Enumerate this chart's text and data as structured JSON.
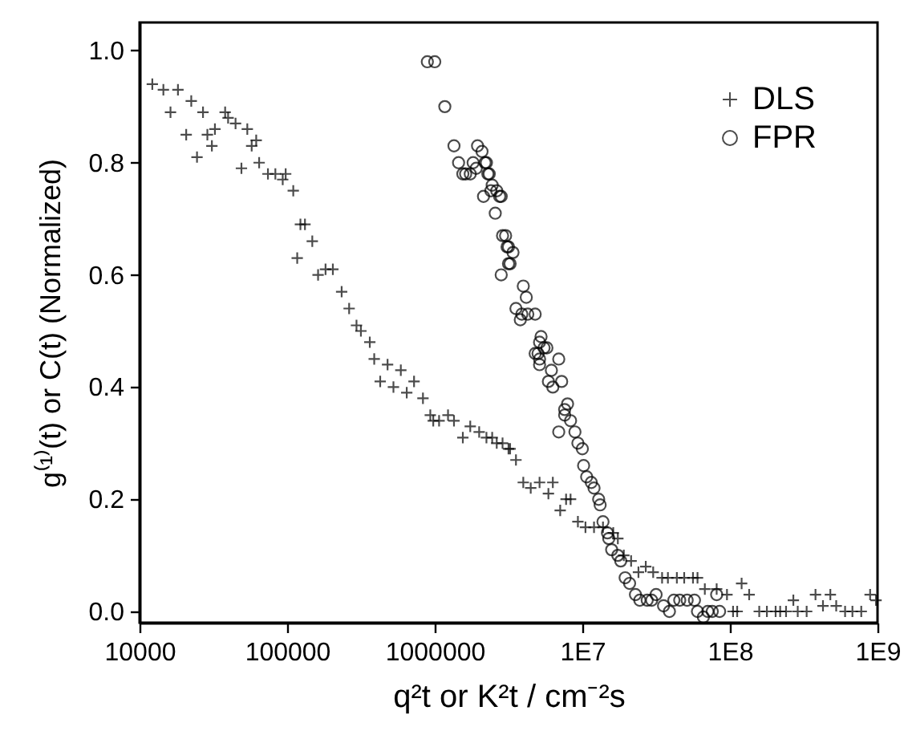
{
  "chart_data": {
    "type": "scatter",
    "xlabel": "q²t or K²t  / cm⁻²s",
    "ylabel": "g⁽¹⁾(t)  or C(t)  (Normalized)",
    "log": "x",
    "xlim": [
      10000,
      1000000000
    ],
    "xticks": [
      10000,
      100000,
      1000000,
      {
        "value": 10000000,
        "label": "1E7"
      },
      {
        "value": 100000000,
        "label": "1E8"
      },
      {
        "value": 1000000000,
        "label": "1E9"
      }
    ],
    "ylim": [
      -0.02,
      1.05
    ],
    "yticks": [
      {
        "value": 0,
        "label": "0.0"
      },
      {
        "value": 0.2,
        "label": "0.2"
      },
      {
        "value": 0.4,
        "label": "0.4"
      },
      {
        "value": 0.6,
        "label": "0.6"
      },
      {
        "value": 0.8,
        "label": "0.8"
      },
      {
        "value": 1,
        "label": "1.0"
      }
    ],
    "legend": "top right",
    "grid": false,
    "series": [
      {
        "name": "DLS",
        "color": "#000000",
        "marker": "cross",
        "x": [
          12200,
          14500,
          18200,
          16200,
          20700,
          22400,
          24500,
          26900,
          28800,
          30900,
          32400,
          38000,
          39800,
          44700,
          49000,
          53700,
          57500,
          61700,
          64600,
          74100,
          83200,
          93300,
          97700,
          110000,
          117000,
          123000,
          132000,
          148000,
          162000,
          182000,
          204000,
          234000,
          263000,
          295000,
          316000,
          363000,
          389000,
          427000,
          479000,
          525000,
          589000,
          646000,
          724000,
          832000,
          933000,
          977000,
          1070000,
          1230000,
          1350000,
          1550000,
          1740000,
          2000000,
          2240000,
          2450000,
          2630000,
          2880000,
          3160000,
          3240000,
          3550000,
          3980000,
          4470000,
          5130000,
          5890000,
          6310000,
          7080000,
          7760000,
          8320000,
          9330000,
          10500000,
          12000000,
          13800000,
          16200000,
          17400000,
          19100000,
          21400000,
          24000000,
          26900000,
          30200000,
          34700000,
          38000000,
          43700000,
          49000000,
          56200000,
          60300000,
          67600000,
          81300000,
          95500000,
          105000000,
          112000000,
          120000000,
          135000000,
          158000000,
          178000000,
          204000000,
          219000000,
          240000000,
          269000000,
          288000000,
          331000000,
          380000000,
          427000000,
          479000000,
          525000000,
          603000000,
          676000000,
          776000000,
          891000000,
          977000000
        ],
        "values": [
          0.94,
          0.93,
          0.93,
          0.89,
          0.85,
          0.91,
          0.81,
          0.89,
          0.85,
          0.83,
          0.86,
          0.89,
          0.88,
          0.87,
          0.79,
          0.86,
          0.83,
          0.84,
          0.8,
          0.78,
          0.78,
          0.77,
          0.78,
          0.75,
          0.63,
          0.69,
          0.69,
          0.66,
          0.6,
          0.61,
          0.61,
          0.57,
          0.54,
          0.51,
          0.5,
          0.48,
          0.45,
          0.41,
          0.44,
          0.4,
          0.43,
          0.39,
          0.41,
          0.38,
          0.35,
          0.34,
          0.34,
          0.35,
          0.34,
          0.31,
          0.33,
          0.32,
          0.31,
          0.31,
          0.3,
          0.3,
          0.29,
          0.29,
          0.27,
          0.23,
          0.22,
          0.23,
          0.21,
          0.23,
          0.18,
          0.2,
          0.2,
          0.16,
          0.15,
          0.15,
          0.15,
          0.14,
          0.13,
          0.1,
          0.09,
          0.07,
          0.08,
          0.07,
          0.06,
          0.06,
          0.06,
          0.06,
          0.06,
          0.06,
          0.04,
          0.04,
          0.03,
          0.0,
          0.0,
          0.05,
          0.03,
          0.0,
          0.0,
          0.0,
          0.0,
          0.0,
          0.02,
          0.0,
          0.0,
          0.03,
          0.01,
          0.03,
          0.01,
          0.0,
          0.0,
          0.0,
          0.03,
          0.02
        ]
      },
      {
        "name": "FPR",
        "color": "#000000",
        "marker": "circle",
        "x": [
          891000,
          1000000,
          1170000,
          1350000,
          1450000,
          1550000,
          1620000,
          1740000,
          1820000,
          1910000,
          1950000,
          2090000,
          2140000,
          2190000,
          2240000,
          2290000,
          2340000,
          2400000,
          2450000,
          2570000,
          2630000,
          2750000,
          2820000,
          2820000,
          2880000,
          3020000,
          3090000,
          3160000,
          3160000,
          3240000,
          3390000,
          3550000,
          3800000,
          3890000,
          3980000,
          4170000,
          4270000,
          4790000,
          4790000,
          5010000,
          5130000,
          5130000,
          5130000,
          5250000,
          5500000,
          5750000,
          5890000,
          6170000,
          6310000,
          6920000,
          6920000,
          7240000,
          7590000,
          7590000,
          7940000,
          8320000,
          8910000,
          9330000,
          10000000,
          10200000,
          10700000,
          11500000,
          12000000,
          12900000,
          13200000,
          13800000,
          14800000,
          15100000,
          15800000,
          17400000,
          18200000,
          19500000,
          20900000,
          22900000,
          24500000,
          27500000,
          29500000,
          31600000,
          35500000,
          38900000,
          41700000,
          45700000,
          51300000,
          57500000,
          60300000,
          66100000,
          70800000,
          75900000,
          81300000,
          85100000
        ],
        "values": [
          0.98,
          0.98,
          0.9,
          0.83,
          0.8,
          0.78,
          0.78,
          0.78,
          0.8,
          0.79,
          0.83,
          0.82,
          0.74,
          0.8,
          0.8,
          0.78,
          0.78,
          0.75,
          0.76,
          0.71,
          0.75,
          0.74,
          0.74,
          0.6,
          0.67,
          0.67,
          0.65,
          0.65,
          0.62,
          0.62,
          0.64,
          0.54,
          0.52,
          0.53,
          0.58,
          0.56,
          0.53,
          0.53,
          0.46,
          0.46,
          0.48,
          0.45,
          0.44,
          0.49,
          0.47,
          0.47,
          0.41,
          0.43,
          0.4,
          0.45,
          0.32,
          0.41,
          0.36,
          0.35,
          0.37,
          0.34,
          0.32,
          0.3,
          0.29,
          0.26,
          0.24,
          0.23,
          0.22,
          0.2,
          0.19,
          0.16,
          0.14,
          0.13,
          0.11,
          0.1,
          0.09,
          0.06,
          0.05,
          0.03,
          0.02,
          0.02,
          0.02,
          0.03,
          0.01,
          0.0,
          0.02,
          0.02,
          0.02,
          0.02,
          0.0,
          -0.01,
          0.0,
          0.0,
          0.03,
          0.0
        ]
      }
    ]
  }
}
